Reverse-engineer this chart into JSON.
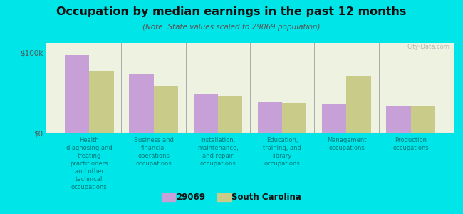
{
  "title": "Occupation by median earnings in the past 12 months",
  "subtitle": "(Note: State values scaled to 29069 population)",
  "categories": [
    "Health\ndiagnosing and\ntreating\npractitioners\nand other\ntechnical\noccupations",
    "Business and\nfinancial\noperations\noccupations",
    "Installation,\nmaintenance,\nand repair\noccupations",
    "Education,\ntraining, and\nlibrary\noccupations",
    "Management\noccupations",
    "Production\noccupations"
  ],
  "values_29069": [
    97000,
    73000,
    48000,
    38000,
    36000,
    33000
  ],
  "values_sc": [
    76000,
    58000,
    45000,
    37000,
    70000,
    33000
  ],
  "color_29069": "#c8a0d8",
  "color_sc": "#c8cc88",
  "legend_labels": [
    "29069",
    "South Carolina"
  ],
  "ylabel_ticks": [
    "$0",
    "$100k"
  ],
  "ytick_values": [
    0,
    100000
  ],
  "ylim": [
    0,
    112000
  ],
  "background_color": "#eef2e0",
  "outer_background": "#00e5e8",
  "bar_width": 0.38,
  "watermark": "City-Data.com"
}
